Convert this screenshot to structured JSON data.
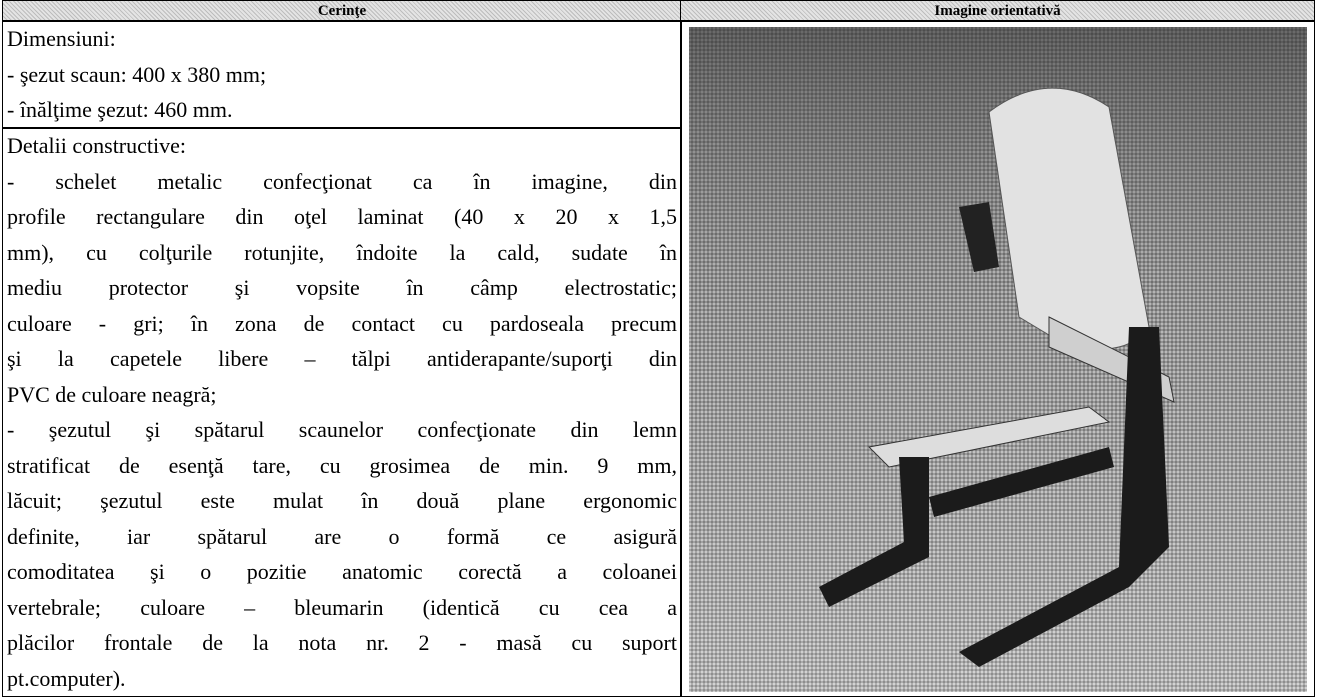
{
  "header": {
    "columns": [
      "Cerinţe",
      "Imagine orientativă"
    ]
  },
  "rows": [
    {
      "title": "Dimensiuni:",
      "items": [
        [
          "- şezut scaun: 400 x 380 mm;"
        ],
        [
          "- înălţime şezut: 460 mm."
        ]
      ]
    },
    {
      "title": "Detalii constructive:",
      "items": [
        [
          "- schelet metalic confecţionat ca în imagine, din",
          "profile rectangulare din oţel laminat (40 x 20 x 1,5",
          "mm), cu colţurile rotunjite, îndoite la cald, sudate în",
          "mediu protector şi vopsite în câmp electrostatic;",
          "culoare - gri; în zona de contact cu pardoseala precum",
          "şi la capetele libere – tălpi antiderapante/suporţi din",
          "PVC de culoare neagră;"
        ],
        [
          "- şezutul şi spătarul scaunelor confecţionate din lemn",
          "stratificat de esenţă tare, cu grosimea de min. 9 mm,",
          "lăcuit; şezutul este mulat în două plane ergonomic",
          "definite, iar spătarul are o formă ce asigură",
          "comoditatea şi o pozitie anatomic corectă a coloanei",
          "vertebrale; culoare – bleumarin (identică cu cea a",
          "plăcilor frontale de la nota nr. 2 - masă cu suport",
          "pt.computer)."
        ]
      ]
    }
  ]
}
